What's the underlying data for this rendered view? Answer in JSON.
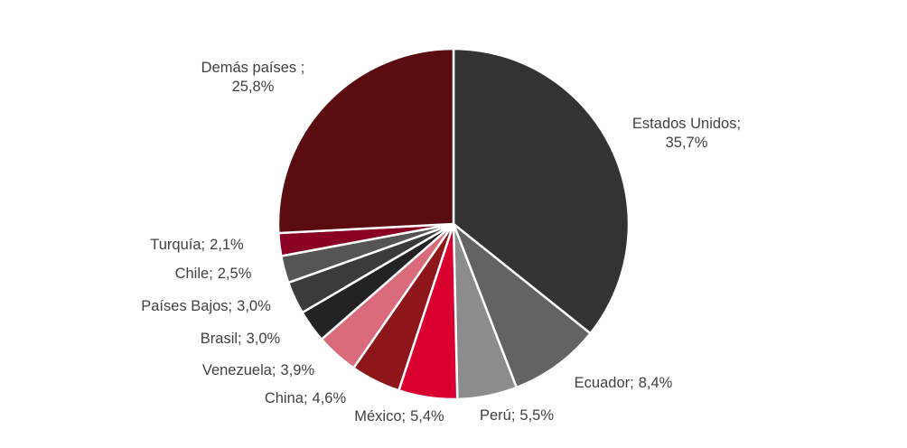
{
  "chart_data": {
    "type": "pie",
    "categories": [
      "Estados Unidos;",
      "Ecuador;",
      "Perú;",
      "México;",
      "China;",
      "Venezuela;",
      "Brasil;",
      "Países Bajos;",
      "Chile;",
      "Turquía;",
      "Demás países ;"
    ],
    "values": [
      35.7,
      8.4,
      5.5,
      5.4,
      4.6,
      3.9,
      3.0,
      3.0,
      2.5,
      2.1,
      25.8
    ],
    "value_labels": [
      "35,7%",
      "8,4%",
      "5,5%",
      "5,4%",
      "4,6%",
      "3,9%",
      "3,0%",
      "3,0%",
      "2,5%",
      "2,1%",
      "25,8%"
    ],
    "colors": [
      "#333333",
      "#636363",
      "#8c8c8c",
      "#d9002f",
      "#8e1519",
      "#d96b7b",
      "#232323",
      "#3b3b3b",
      "#555555",
      "#8a0022",
      "#5a0c10"
    ]
  }
}
